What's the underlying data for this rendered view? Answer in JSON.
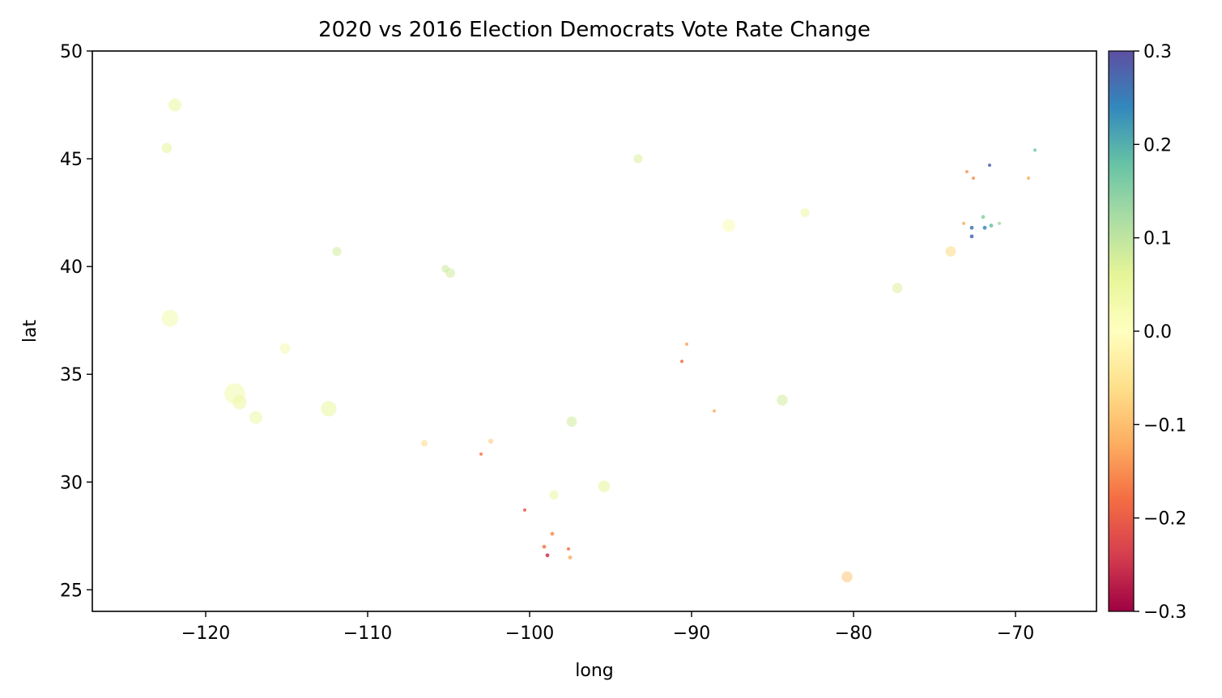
{
  "chart_data": {
    "type": "scatter",
    "title": "2020 vs 2016 Election Democrats Vote Rate Change",
    "xlabel": "long",
    "ylabel": "lat",
    "xlim": [
      -127,
      -65
    ],
    "ylim": [
      24,
      50
    ],
    "xticks": [
      -120,
      -110,
      -100,
      -90,
      -80,
      -70
    ],
    "yticks": [
      25,
      30,
      35,
      40,
      45,
      50
    ],
    "xtick_labels": [
      "−120",
      "−110",
      "−100",
      "−90",
      "−80",
      "−70"
    ],
    "ytick_labels": [
      "25",
      "30",
      "35",
      "40",
      "45",
      "50"
    ],
    "grid": false,
    "colormap": "Spectral",
    "colorbar": {
      "range": [
        -0.3,
        0.3
      ],
      "ticks": [
        -0.3,
        -0.2,
        -0.1,
        0.0,
        0.1,
        0.2,
        0.3
      ],
      "tick_labels": [
        "−0.3",
        "−0.2",
        "−0.1",
        "0.0",
        "0.1",
        "0.2",
        "0.3"
      ],
      "stops": [
        "#9e0142",
        "#d53e4f",
        "#f46d43",
        "#fdae61",
        "#fee08b",
        "#ffffbf",
        "#e6f598",
        "#abdda4",
        "#66c2a5",
        "#3288bd",
        "#5e4fa2"
      ]
    },
    "points": [
      [
        -118.2,
        34.1,
        0.03,
        3.2
      ],
      [
        -117.9,
        33.7,
        0.04,
        2.2
      ],
      [
        -116.9,
        33.0,
        0.04,
        2.0
      ],
      [
        -112.4,
        33.4,
        0.05,
        2.4
      ],
      [
        -115.1,
        36.2,
        0.03,
        1.6
      ],
      [
        -122.2,
        37.6,
        0.03,
        2.6
      ],
      [
        -121.9,
        47.5,
        0.05,
        2.0
      ],
      [
        -122.4,
        45.5,
        0.06,
        1.6
      ],
      [
        -111.9,
        40.7,
        0.08,
        1.4
      ],
      [
        -104.9,
        39.7,
        0.08,
        1.5
      ],
      [
        -105.2,
        39.9,
        0.09,
        1.2
      ],
      [
        -97.4,
        32.8,
        0.08,
        1.6
      ],
      [
        -95.4,
        29.8,
        0.06,
        1.8
      ],
      [
        -98.5,
        29.4,
        0.05,
        1.4
      ],
      [
        -84.4,
        33.8,
        0.08,
        1.7
      ],
      [
        -93.3,
        45.0,
        0.07,
        1.4
      ],
      [
        -87.7,
        41.9,
        0.02,
        2.0
      ],
      [
        -83.0,
        42.5,
        0.04,
        1.4
      ],
      [
        -77.3,
        39.0,
        0.07,
        1.6
      ],
      [
        -74.0,
        40.7,
        -0.07,
        1.6
      ],
      [
        -80.4,
        25.6,
        -0.09,
        1.7
      ],
      [
        -71.9,
        41.8,
        0.24,
        0.6
      ],
      [
        -72.7,
        41.4,
        0.27,
        0.6
      ],
      [
        -72.7,
        41.8,
        0.26,
        0.6
      ],
      [
        -71.6,
        44.7,
        0.28,
        0.5
      ],
      [
        -68.8,
        45.4,
        0.17,
        0.5
      ],
      [
        -71.5,
        41.9,
        0.18,
        0.6
      ],
      [
        -72.0,
        42.3,
        0.15,
        0.6
      ],
      [
        -71.0,
        42.0,
        0.13,
        0.5
      ],
      [
        -98.9,
        26.6,
        -0.25,
        0.6
      ],
      [
        -99.1,
        27.0,
        -0.17,
        0.6
      ],
      [
        -97.6,
        26.9,
        -0.18,
        0.5
      ],
      [
        -100.3,
        28.7,
        -0.21,
        0.5
      ],
      [
        -98.6,
        27.6,
        -0.15,
        0.6
      ],
      [
        -97.5,
        26.5,
        -0.12,
        0.6
      ],
      [
        -103.0,
        31.3,
        -0.17,
        0.5
      ],
      [
        -90.3,
        36.4,
        -0.13,
        0.5
      ],
      [
        -90.6,
        35.6,
        -0.18,
        0.5
      ],
      [
        -88.6,
        33.3,
        -0.12,
        0.5
      ],
      [
        -73.0,
        44.4,
        -0.14,
        0.5
      ],
      [
        -72.6,
        44.1,
        -0.15,
        0.5
      ],
      [
        -69.2,
        44.1,
        -0.12,
        0.5
      ],
      [
        -73.2,
        42.0,
        -0.12,
        0.5
      ],
      [
        -106.5,
        31.8,
        -0.07,
        1.0
      ],
      [
        -102.4,
        31.9,
        -0.09,
        0.8
      ]
    ]
  }
}
